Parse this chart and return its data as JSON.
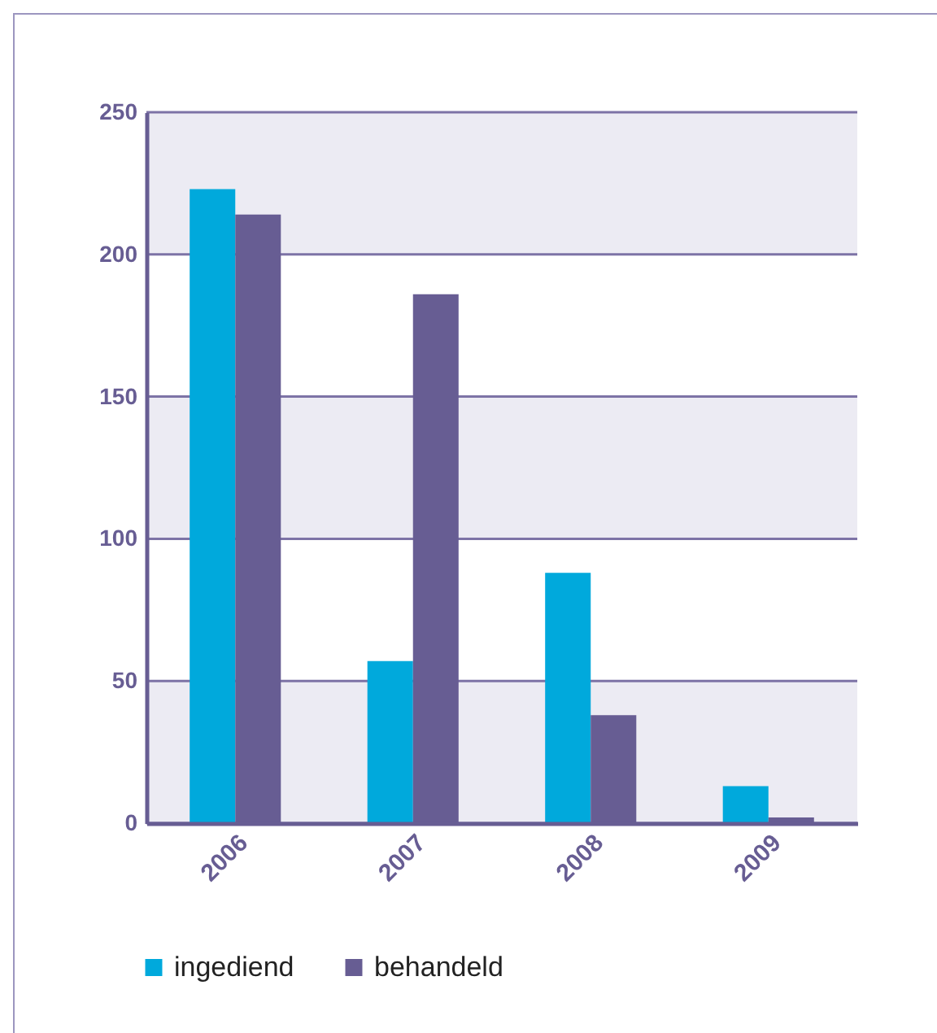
{
  "chart_data": {
    "type": "bar",
    "categories": [
      "2006",
      "2007",
      "2008",
      "2009"
    ],
    "series": [
      {
        "name": "ingediend",
        "color": "#00a9dc",
        "values": [
          223,
          57,
          88,
          13
        ]
      },
      {
        "name": "behandeld",
        "color": "#675d93",
        "values": [
          214,
          186,
          38,
          2
        ]
      }
    ],
    "ylim": [
      0,
      250
    ],
    "yticks": [
      0,
      50,
      100,
      150,
      200,
      250
    ],
    "grid": "y",
    "legend": "bottom left",
    "bands": [
      {
        "axis": "y",
        "from": 0,
        "to": 50,
        "color": "#ecebf3"
      },
      {
        "axis": "y",
        "from": 100,
        "to": 150,
        "color": "#ecebf3"
      },
      {
        "axis": "y",
        "from": 200,
        "to": 250,
        "color": "#ecebf3"
      }
    ]
  }
}
